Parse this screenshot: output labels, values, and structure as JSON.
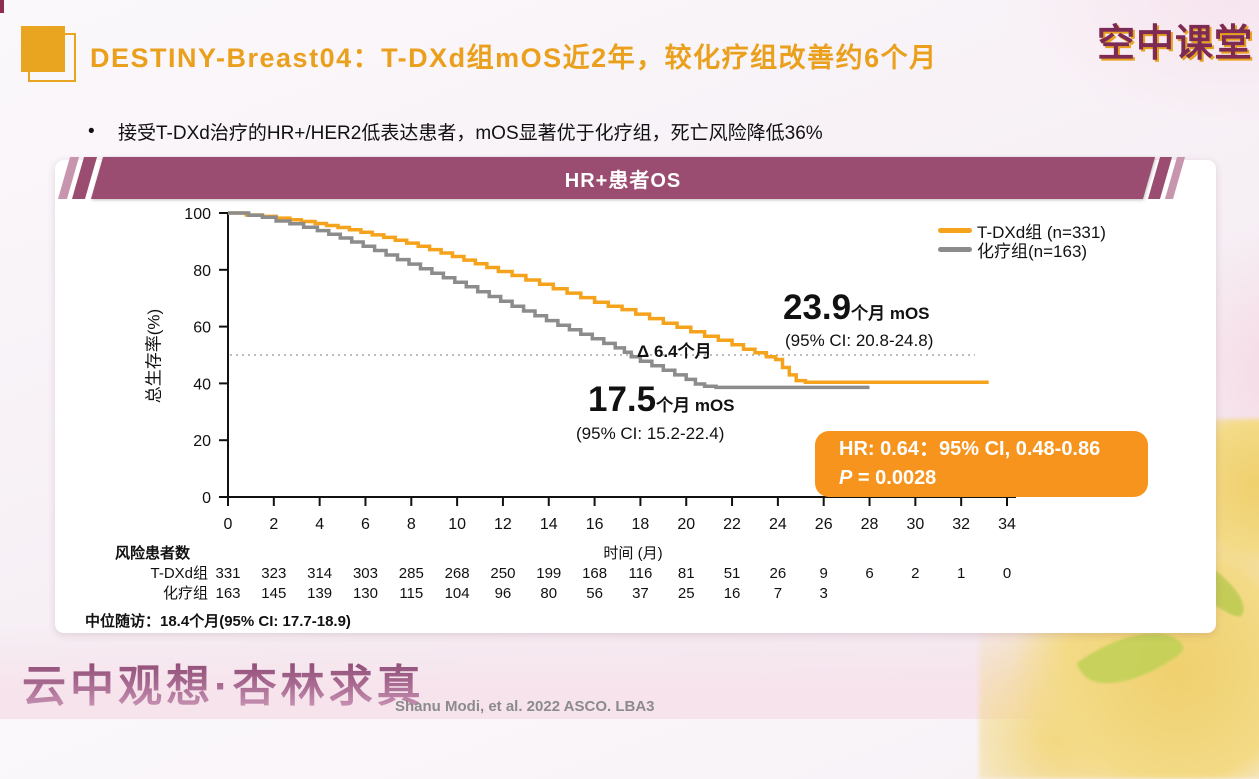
{
  "page": {
    "title": "DESTINY-Breast04：T-DXd组mOS近2年，较化疗组改善约6个月",
    "logo": "空中课堂",
    "bullet_marker": "•",
    "bullet": "接受T-DXd治疗的HR+/HER2低表达患者，mOS显著优于化疗组，死亡风险降低36%",
    "watermark": "云中观想·杏林求真",
    "citation": "Shanu Modi, et al. 2022 ASCO. LBA3",
    "footnote": "中位随访：18.4个月(95% CI: 17.7-18.9)"
  },
  "panel": {
    "header": "HR+患者OS"
  },
  "colors": {
    "title_orange": "#EAA01D",
    "banner_maroon": "#9B4D71",
    "tdxd_orange": "#F5A31C",
    "chemo_gray": "#8C8C8C",
    "hr_box_orange": "#F7941D",
    "dotted_gray": "#BDBDBD"
  },
  "legend": [
    {
      "label": "T-DXd组 (n=331)",
      "color": "#F5A31C"
    },
    {
      "label": "化疗组(n=163)",
      "color": "#8C8C8C"
    }
  ],
  "annotations": {
    "tdxd_mos_value": "23.9",
    "tdxd_mos_unit": "个月 mOS",
    "tdxd_ci": "(95% CI: 20.8-24.8)",
    "delta": "Δ 6.4个月",
    "chemo_mos_value": "17.5",
    "chemo_mos_unit": "个月 mOS",
    "chemo_ci": "(95% CI: 15.2-22.4)",
    "hr_line1": "HR: 0.64：95% CI, 0.48-0.86",
    "p_label": "P",
    "p_value": " = 0.0028"
  },
  "chart_data": {
    "type": "line",
    "subtype": "kaplan-meier-step",
    "title": "HR+患者OS",
    "xlabel": "时间 (月)",
    "ylabel": "总生存率(%)",
    "xlim": [
      0,
      34
    ],
    "ylim": [
      0,
      100
    ],
    "xticks": [
      0,
      2,
      4,
      6,
      8,
      10,
      12,
      14,
      16,
      18,
      20,
      22,
      24,
      26,
      28,
      30,
      32,
      34
    ],
    "yticks": [
      0,
      20,
      40,
      60,
      80,
      100
    ],
    "reference_line_y": 50,
    "grid": false,
    "legend_position": "top-right",
    "series": [
      {
        "name": "T-DXd组 (n=331)",
        "color": "#F5A31C",
        "median_months": 23.9,
        "median_ci": "20.8-24.8",
        "points": [
          [
            0,
            100
          ],
          [
            0.8,
            99.3
          ],
          [
            1.5,
            98.8
          ],
          [
            2.1,
            98.2
          ],
          [
            2.7,
            97.6
          ],
          [
            3.2,
            97
          ],
          [
            3.8,
            96.3
          ],
          [
            4.3,
            95.6
          ],
          [
            4.8,
            94.9
          ],
          [
            5.3,
            94.1
          ],
          [
            5.8,
            93.2
          ],
          [
            6.3,
            92.3
          ],
          [
            6.8,
            91.4
          ],
          [
            7.3,
            90.4
          ],
          [
            7.8,
            89.4
          ],
          [
            8.3,
            88.3
          ],
          [
            8.8,
            87.1
          ],
          [
            9.3,
            85.9
          ],
          [
            9.8,
            84.7
          ],
          [
            10.3,
            83.4
          ],
          [
            10.8,
            82.1
          ],
          [
            11.3,
            80.8
          ],
          [
            11.8,
            79.4
          ],
          [
            12.4,
            78
          ],
          [
            13,
            76.4
          ],
          [
            13.6,
            74.9
          ],
          [
            14.2,
            73.3
          ],
          [
            14.8,
            71.8
          ],
          [
            15.4,
            70.2
          ],
          [
            16,
            68.6
          ],
          [
            16.6,
            67.2
          ],
          [
            17.2,
            66
          ],
          [
            17.8,
            64.4
          ],
          [
            18.4,
            62.8
          ],
          [
            19,
            61.2
          ],
          [
            19.6,
            59.8
          ],
          [
            20.2,
            58.2
          ],
          [
            20.8,
            56.6
          ],
          [
            21.4,
            55.2
          ],
          [
            22,
            53.6
          ],
          [
            22.5,
            52
          ],
          [
            23,
            50.8
          ],
          [
            23.5,
            49.4
          ],
          [
            23.9,
            48.4
          ],
          [
            24.2,
            45.6
          ],
          [
            24.5,
            43
          ],
          [
            24.8,
            41
          ],
          [
            25.2,
            40.4
          ],
          [
            33.2,
            40.4
          ]
        ]
      },
      {
        "name": "化疗组(n=163)",
        "color": "#8C8C8C",
        "median_months": 17.5,
        "median_ci": "15.2-22.4",
        "points": [
          [
            0,
            100
          ],
          [
            0.9,
            99.2
          ],
          [
            1.5,
            98.5
          ],
          [
            2.1,
            97.2
          ],
          [
            2.7,
            96.2
          ],
          [
            3.3,
            95
          ],
          [
            3.9,
            93.8
          ],
          [
            4.4,
            92.5
          ],
          [
            4.9,
            91.2
          ],
          [
            5.4,
            89.8
          ],
          [
            5.9,
            88.3
          ],
          [
            6.4,
            86.8
          ],
          [
            6.9,
            85.2
          ],
          [
            7.4,
            83.6
          ],
          [
            7.9,
            82
          ],
          [
            8.4,
            80.4
          ],
          [
            8.9,
            78.8
          ],
          [
            9.4,
            77.2
          ],
          [
            9.9,
            75.6
          ],
          [
            10.4,
            74
          ],
          [
            10.9,
            72.3
          ],
          [
            11.4,
            70.6
          ],
          [
            11.9,
            68.9
          ],
          [
            12.4,
            67.2
          ],
          [
            12.9,
            65.5
          ],
          [
            13.4,
            63.8
          ],
          [
            13.9,
            62.1
          ],
          [
            14.4,
            60.5
          ],
          [
            14.9,
            58.9
          ],
          [
            15.4,
            57.3
          ],
          [
            15.9,
            55.7
          ],
          [
            16.4,
            54.1
          ],
          [
            16.9,
            52.5
          ],
          [
            17.3,
            51
          ],
          [
            17.6,
            49.4
          ],
          [
            18,
            47.8
          ],
          [
            18.5,
            46.2
          ],
          [
            19,
            44.6
          ],
          [
            19.5,
            43
          ],
          [
            20,
            41.4
          ],
          [
            20.4,
            39.8
          ],
          [
            20.8,
            39
          ],
          [
            21.3,
            38.6
          ],
          [
            28,
            38.6
          ]
        ]
      }
    ],
    "hazard_ratio": "0.64",
    "hazard_ratio_ci": "0.48-0.86",
    "p_value": "0.0028",
    "risk_table": {
      "title": "风险患者数",
      "rows": [
        {
          "label": "T-DXd组",
          "counts": [
            331,
            323,
            314,
            303,
            285,
            268,
            250,
            199,
            168,
            116,
            81,
            51,
            26,
            9,
            6,
            2,
            1,
            0
          ]
        },
        {
          "label": "化疗组",
          "counts": [
            163,
            145,
            139,
            130,
            115,
            104,
            96,
            80,
            56,
            37,
            25,
            16,
            7,
            3
          ]
        }
      ]
    }
  }
}
